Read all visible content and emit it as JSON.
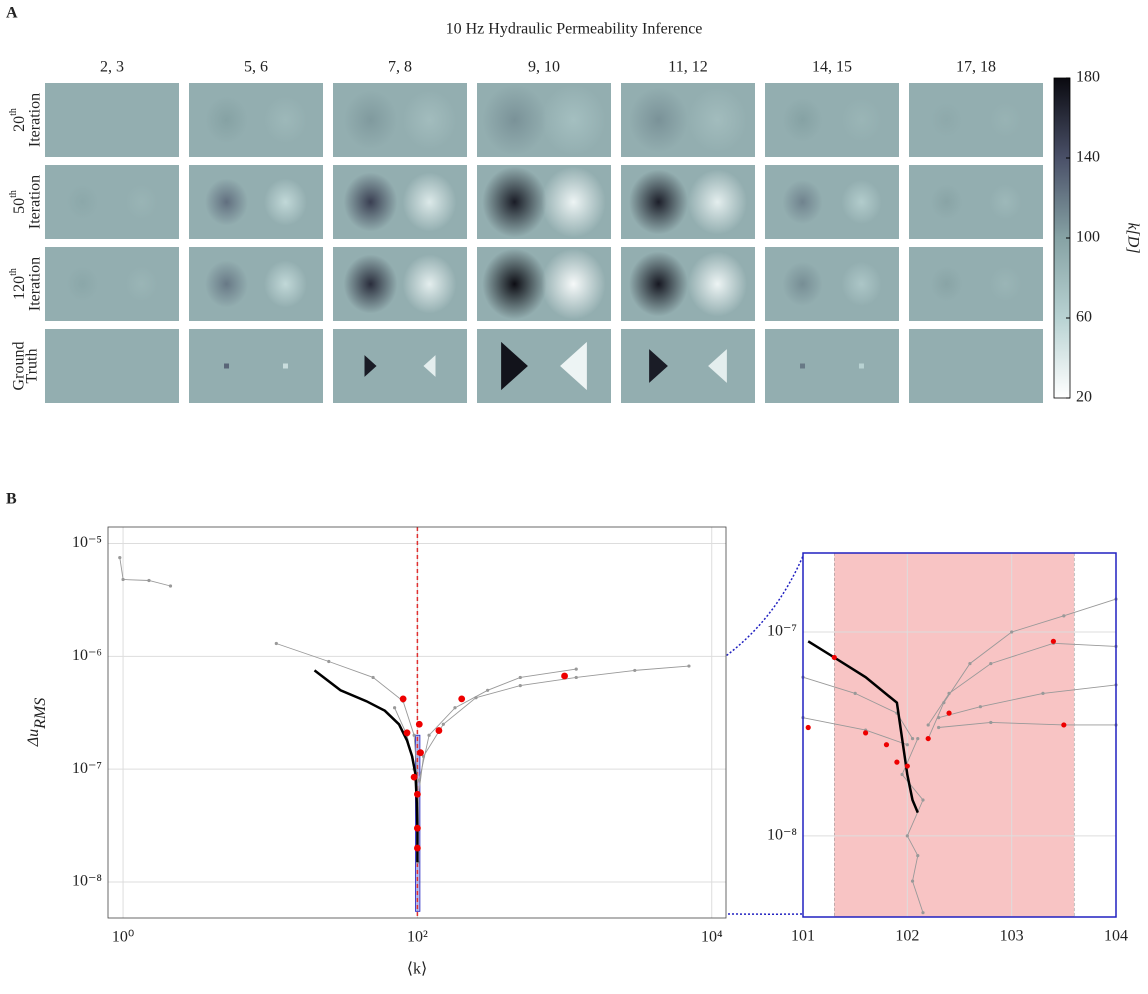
{
  "chart_data": [
    {
      "type": "heatmap",
      "panel_label": "A",
      "title": "10 Hz Hydraulic Permeability Inference",
      "columns": [
        "2, 3",
        "5, 6",
        "7, 8",
        "9, 10",
        "11, 12",
        "14, 15",
        "17, 18"
      ],
      "rows": [
        {
          "base": "20",
          "sup": "th",
          "text": "Iteration"
        },
        {
          "base": "50",
          "sup": "th",
          "text": "Iteration"
        },
        {
          "base": "120",
          "sup": "th",
          "text": "Iteration"
        },
        {
          "lines": [
            "Ground",
            "Truth"
          ]
        }
      ],
      "background": 90,
      "cells": [
        [
          [
            null,
            null
          ],
          [
            100,
            82
          ],
          [
            104,
            78
          ],
          [
            108,
            76
          ],
          [
            108,
            78
          ],
          [
            100,
            84
          ],
          [
            94,
            86
          ]
        ],
        [
          [
            95,
            85
          ],
          [
            125,
            55
          ],
          [
            150,
            40
          ],
          [
            170,
            30
          ],
          [
            168,
            35
          ],
          [
            115,
            65
          ],
          [
            98,
            82
          ]
        ],
        [
          [
            96,
            84
          ],
          [
            120,
            55
          ],
          [
            160,
            35
          ],
          [
            178,
            25
          ],
          [
            172,
            30
          ],
          [
            110,
            70
          ],
          [
            98,
            84
          ]
        ],
        [
          [
            null,
            null
          ],
          [
            130,
            50
          ],
          [
            170,
            35
          ],
          [
            175,
            30
          ],
          [
            170,
            35
          ],
          [
            120,
            60
          ],
          [
            null,
            null
          ]
        ]
      ],
      "colorbar": {
        "label": "k[D]",
        "clim": [
          20,
          180
        ],
        "ticks": [
          20,
          60,
          100,
          140,
          180
        ],
        "colors": [
          "#ffffff",
          "#b8d2d2",
          "#86a2a4",
          "#4a5068",
          "#0a0a10"
        ]
      }
    },
    {
      "type": "line",
      "panel_label": "B",
      "xlabel": "⟨k⟩",
      "ylabel": "Δu",
      "ylabel_sub": "RMS",
      "xscale": "log",
      "yscale": "log",
      "xlim": [
        0.79,
        12500
      ],
      "ylim": [
        4.8e-09,
        1.4e-05
      ],
      "xticks": [
        {
          "value": 1,
          "label": "10⁰"
        },
        {
          "value": 100,
          "label": "10²"
        },
        {
          "value": 10000,
          "label": "10⁴"
        }
      ],
      "yticks": [
        {
          "value": 1e-05,
          "label": "10⁻⁵"
        },
        {
          "value": 1e-06,
          "label": "10⁻⁶"
        },
        {
          "value": 1e-07,
          "label": "10⁻⁷"
        },
        {
          "value": 1e-08,
          "label": "10⁻⁸"
        }
      ],
      "grid": true,
      "reference_x": 100,
      "reference_color": "#e03030",
      "zoom_box": {
        "x": [
          97,
          104
        ],
        "y": [
          5.5e-09,
          2e-07
        ],
        "color": "#2020c0"
      },
      "series": [
        {
          "color": "#999999",
          "style": "line",
          "x": [
            0.95,
            1,
            1.5,
            2.1
          ],
          "y": [
            7.5e-06,
            4.8e-06,
            4.7e-06,
            4.2e-06
          ]
        },
        {
          "color": "#999999",
          "style": "line",
          "x": [
            11,
            25,
            50,
            80,
            95,
            100,
            100
          ],
          "y": [
            1.3e-06,
            9e-07,
            6.5e-07,
            4e-07,
            2e-07,
            8e-08,
            2e-08
          ]
        },
        {
          "color": "#999999",
          "style": "line",
          "x": [
            7000,
            3000,
            1200,
            500,
            250,
            150,
            110,
            102,
            101
          ],
          "y": [
            8.2e-07,
            7.5e-07,
            6.5e-07,
            5.5e-07,
            4.3e-07,
            2.5e-07,
            1.3e-07,
            6e-08,
            1.5e-08
          ]
        },
        {
          "color": "#999999",
          "style": "line",
          "x": [
            1200,
            500,
            300,
            180,
            120,
            103
          ],
          "y": [
            7.7e-07,
            6.5e-07,
            5e-07,
            3.5e-07,
            2e-07,
            8e-08
          ]
        },
        {
          "color": "#999999",
          "style": "line",
          "x": [
            70,
            85,
            95,
            100
          ],
          "y": [
            3.5e-07,
            2e-07,
            1e-07,
            5e-08
          ]
        },
        {
          "color": "#000000",
          "style": "line",
          "x": [
            20,
            30,
            45,
            60,
            75,
            85,
            92,
            97,
            99,
            100,
            100
          ],
          "y": [
            7.5e-07,
            5e-07,
            4e-07,
            3.3e-07,
            2.5e-07,
            1.8e-07,
            1.3e-07,
            9e-08,
            5e-08,
            3e-08,
            1.5e-08
          ]
        },
        {
          "color": "#ee0000",
          "style": "points",
          "x": [
            80,
            200,
            1000,
            85,
            140,
            103,
            95,
            100,
            100,
            100,
            105
          ],
          "y": [
            4.2e-07,
            4.2e-07,
            6.7e-07,
            2.1e-07,
            2.2e-07,
            2.5e-07,
            8.5e-08,
            6e-08,
            3e-08,
            2e-08,
            1.4e-07
          ]
        }
      ]
    },
    {
      "type": "line",
      "xscale": "linear",
      "yscale": "log",
      "xlim": [
        101,
        104
      ],
      "ylim": [
        4e-09,
        2.44e-07
      ],
      "xticks": [
        101,
        102,
        103,
        104
      ],
      "yticks": [
        {
          "value": 1e-07,
          "label": "10⁻⁷"
        },
        {
          "value": 1e-08,
          "label": "10⁻⁸"
        }
      ],
      "grid": true,
      "band_x": [
        101.3,
        103.6
      ],
      "band_color": "#f8c4c4",
      "frame_color": "#2020c0",
      "series": [
        {
          "color": "#999999",
          "style": "line",
          "x": [
            104,
            103.5,
            103,
            102.6,
            102.35,
            102.2
          ],
          "y": [
            1.45e-07,
            1.2e-07,
            1e-07,
            7e-08,
            4.5e-08,
            3e-08
          ]
        },
        {
          "color": "#999999",
          "style": "line",
          "x": [
            104,
            103.4,
            102.8,
            102.4,
            102.2
          ],
          "y": [
            8.5e-08,
            8.8e-08,
            7e-08,
            5e-08,
            3.5e-08
          ]
        },
        {
          "color": "#999999",
          "style": "line",
          "x": [
            104,
            103.3,
            102.7,
            102.3
          ],
          "y": [
            5.5e-08,
            5e-08,
            4.3e-08,
            3.8e-08
          ]
        },
        {
          "color": "#999999",
          "style": "line",
          "x": [
            104,
            103.5,
            102.8,
            102.3
          ],
          "y": [
            3.5e-08,
            3.5e-08,
            3.6e-08,
            3.4e-08
          ]
        },
        {
          "color": "#999999",
          "style": "line",
          "x": [
            101,
            101.6,
            102
          ],
          "y": [
            3.8e-08,
            3.3e-08,
            2.8e-08
          ]
        },
        {
          "color": "#999999",
          "style": "line",
          "x": [
            101,
            101.5,
            101.9,
            102.05
          ],
          "y": [
            6e-08,
            5e-08,
            4e-08,
            3e-08
          ]
        },
        {
          "color": "#999999",
          "style": "line",
          "x": [
            102.1,
            101.95,
            102.15,
            102,
            102.1,
            102.05,
            102.15
          ],
          "y": [
            3e-08,
            2e-08,
            1.5e-08,
            1e-08,
            8e-09,
            6e-09,
            4.2e-09
          ]
        },
        {
          "color": "#000000",
          "style": "line",
          "x": [
            101.05,
            101.3,
            101.6,
            101.9,
            101.95,
            102,
            102.05,
            102.1
          ],
          "y": [
            9e-08,
            7.5e-08,
            6e-08,
            4.5e-08,
            3e-08,
            2e-08,
            1.5e-08,
            1.3e-08
          ]
        },
        {
          "color": "#ee0000",
          "style": "points",
          "x": [
            101.3,
            103.4,
            101.6,
            101.8,
            103.5,
            102.4,
            101.9,
            102,
            102.2,
            101.05
          ],
          "y": [
            7.5e-08,
            9e-08,
            3.2e-08,
            2.8e-08,
            3.5e-08,
            4e-08,
            2.3e-08,
            2.2e-08,
            3e-08,
            3.4e-08
          ]
        }
      ]
    }
  ]
}
